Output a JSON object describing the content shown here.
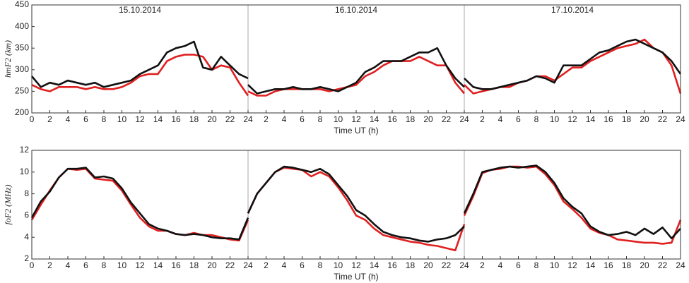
{
  "chart_data": [
    {
      "type": "line",
      "y_label": "hmF2 (km)",
      "x_label": "Time UT (h)",
      "annotations": [
        "15.10.2014",
        "16.10.2014",
        "17.10.2014"
      ],
      "x": [
        0,
        1,
        2,
        3,
        4,
        5,
        6,
        7,
        8,
        9,
        10,
        11,
        12,
        13,
        14,
        15,
        16,
        17,
        18,
        19,
        20,
        21,
        22,
        23,
        24,
        24,
        24,
        25,
        26,
        27,
        28,
        29,
        30,
        31,
        32,
        33,
        34,
        35,
        36,
        37,
        38,
        39,
        40,
        41,
        42,
        43,
        44,
        45,
        46,
        47,
        48,
        48,
        48,
        49,
        50,
        51,
        52,
        53,
        54,
        55,
        56,
        57,
        58,
        59,
        60,
        61,
        62,
        63,
        64,
        65,
        66,
        67,
        68,
        69,
        70,
        71,
        72
      ],
      "series": [
        {
          "color": "#e02020",
          "values": [
            265,
            255,
            250,
            260,
            260,
            260,
            255,
            260,
            255,
            255,
            260,
            270,
            285,
            290,
            290,
            320,
            330,
            335,
            335,
            330,
            300,
            310,
            305,
            270,
            240,
            null,
            250,
            240,
            240,
            250,
            255,
            255,
            255,
            255,
            255,
            250,
            255,
            260,
            265,
            285,
            295,
            310,
            320,
            320,
            320,
            330,
            320,
            310,
            310,
            270,
            245,
            null,
            265,
            245,
            250,
            255,
            260,
            260,
            270,
            275,
            285,
            285,
            275,
            290,
            305,
            305,
            320,
            330,
            340,
            350,
            355,
            360,
            370,
            350,
            340,
            310,
            245
          ]
        },
        {
          "color": "#111111",
          "values": [
            285,
            260,
            270,
            265,
            275,
            270,
            265,
            270,
            260,
            265,
            270,
            275,
            290,
            300,
            310,
            340,
            350,
            355,
            365,
            305,
            300,
            330,
            310,
            290,
            280,
            null,
            265,
            245,
            250,
            255,
            255,
            260,
            255,
            255,
            260,
            255,
            250,
            260,
            270,
            295,
            305,
            320,
            320,
            320,
            330,
            340,
            340,
            350,
            310,
            280,
            260,
            null,
            280,
            260,
            255,
            255,
            260,
            265,
            270,
            275,
            285,
            280,
            270,
            310,
            310,
            310,
            325,
            340,
            345,
            355,
            365,
            370,
            360,
            350,
            340,
            320,
            290
          ]
        }
      ],
      "xlim": [
        0,
        72
      ],
      "ylim": [
        200,
        450
      ],
      "yticks": [
        200,
        250,
        300,
        350,
        400,
        450
      ],
      "xticks": [
        0,
        2,
        4,
        6,
        8,
        10,
        12,
        14,
        16,
        18,
        20,
        22,
        24,
        {
          "value": 26,
          "label": "2"
        },
        {
          "value": 28,
          "label": "4"
        },
        {
          "value": 30,
          "label": "6"
        },
        {
          "value": 32,
          "label": "8"
        },
        {
          "value": 34,
          "label": "10"
        },
        {
          "value": 36,
          "label": "12"
        },
        {
          "value": 38,
          "label": "14"
        },
        {
          "value": 40,
          "label": "16"
        },
        {
          "value": 42,
          "label": "18"
        },
        {
          "value": 44,
          "label": "20"
        },
        {
          "value": 46,
          "label": "22"
        },
        {
          "value": 48,
          "label": "24"
        },
        {
          "value": 50,
          "label": "2"
        },
        {
          "value": 52,
          "label": "4"
        },
        {
          "value": 54,
          "label": "6"
        },
        {
          "value": 56,
          "label": "8"
        },
        {
          "value": 58,
          "label": "10"
        },
        {
          "value": 60,
          "label": "12"
        },
        {
          "value": 62,
          "label": "14"
        },
        {
          "value": 64,
          "label": "16"
        },
        {
          "value": 66,
          "label": "18"
        },
        {
          "value": 68,
          "label": "20"
        },
        {
          "value": 70,
          "label": "22"
        },
        {
          "value": 72,
          "label": "24"
        }
      ]
    },
    {
      "type": "line",
      "y_label": "foF2 (MHz)",
      "x_label": "Time UT (h)",
      "x": [
        0,
        1,
        2,
        3,
        4,
        5,
        6,
        7,
        8,
        9,
        10,
        11,
        12,
        13,
        14,
        15,
        16,
        17,
        18,
        19,
        20,
        21,
        22,
        23,
        24,
        24,
        24,
        25,
        26,
        27,
        28,
        29,
        30,
        31,
        32,
        33,
        34,
        35,
        36,
        37,
        38,
        39,
        40,
        41,
        42,
        43,
        44,
        45,
        46,
        47,
        48,
        48,
        48,
        49,
        50,
        51,
        52,
        53,
        54,
        55,
        56,
        57,
        58,
        59,
        60,
        61,
        62,
        63,
        64,
        65,
        66,
        67,
        68,
        69,
        70,
        71,
        72
      ],
      "series": [
        {
          "color": "#e02020",
          "values": [
            5.6,
            7.0,
            8.3,
            9.5,
            10.3,
            10.2,
            10.3,
            9.4,
            9.3,
            9.2,
            8.3,
            7.0,
            5.8,
            5.0,
            4.6,
            4.6,
            4.3,
            4.2,
            4.4,
            4.2,
            4.2,
            4.0,
            3.8,
            3.7,
            5.6,
            null,
            6.2,
            8.0,
            9.0,
            10.0,
            10.4,
            10.3,
            10.2,
            9.6,
            10.0,
            9.6,
            8.6,
            7.4,
            6.0,
            5.6,
            4.8,
            4.2,
            4.0,
            3.8,
            3.6,
            3.5,
            3.3,
            3.2,
            3.0,
            2.8,
            5.2,
            null,
            6.0,
            7.8,
            9.9,
            10.2,
            10.3,
            10.5,
            10.5,
            10.4,
            10.5,
            9.8,
            8.8,
            7.3,
            6.6,
            5.8,
            4.8,
            4.4,
            4.2,
            3.8,
            3.7,
            3.6,
            3.5,
            3.5,
            3.4,
            3.5,
            5.6
          ]
        },
        {
          "color": "#111111",
          "values": [
            5.8,
            7.3,
            8.2,
            9.5,
            10.3,
            10.3,
            10.4,
            9.5,
            9.6,
            9.4,
            8.5,
            7.2,
            6.2,
            5.2,
            4.8,
            4.6,
            4.3,
            4.2,
            4.3,
            4.2,
            4.0,
            3.9,
            3.9,
            3.8,
            5.8,
            null,
            6.2,
            8.0,
            9.0,
            10.0,
            10.5,
            10.4,
            10.2,
            10.0,
            10.3,
            9.8,
            8.8,
            7.8,
            6.5,
            6.0,
            5.2,
            4.5,
            4.2,
            4.0,
            3.9,
            3.7,
            3.6,
            3.8,
            3.9,
            4.2,
            5.0,
            null,
            6.2,
            8.0,
            10.0,
            10.2,
            10.4,
            10.5,
            10.4,
            10.5,
            10.6,
            10.0,
            9.0,
            7.6,
            6.8,
            6.2,
            5.0,
            4.5,
            4.2,
            4.3,
            4.5,
            4.2,
            4.8,
            4.3,
            4.9,
            3.9,
            4.8
          ]
        }
      ],
      "xlim": [
        0,
        72
      ],
      "ylim": [
        2,
        12
      ],
      "yticks": [
        2,
        4,
        6,
        8,
        10,
        12
      ],
      "xticks": [
        0,
        2,
        4,
        6,
        8,
        10,
        12,
        14,
        16,
        18,
        20,
        22,
        24,
        {
          "value": 26,
          "label": "2"
        },
        {
          "value": 28,
          "label": "4"
        },
        {
          "value": 30,
          "label": "6"
        },
        {
          "value": 32,
          "label": "8"
        },
        {
          "value": 34,
          "label": "10"
        },
        {
          "value": 36,
          "label": "12"
        },
        {
          "value": 38,
          "label": "14"
        },
        {
          "value": 40,
          "label": "16"
        },
        {
          "value": 42,
          "label": "18"
        },
        {
          "value": 44,
          "label": "20"
        },
        {
          "value": 46,
          "label": "22"
        },
        {
          "value": 48,
          "label": "24"
        },
        {
          "value": 50,
          "label": "2"
        },
        {
          "value": 52,
          "label": "4"
        },
        {
          "value": 54,
          "label": "6"
        },
        {
          "value": 56,
          "label": "8"
        },
        {
          "value": 58,
          "label": "10"
        },
        {
          "value": 60,
          "label": "12"
        },
        {
          "value": 62,
          "label": "14"
        },
        {
          "value": 64,
          "label": "16"
        },
        {
          "value": 66,
          "label": "18"
        },
        {
          "value": 68,
          "label": "20"
        },
        {
          "value": 70,
          "label": "22"
        },
        {
          "value": 72,
          "label": "24"
        }
      ]
    }
  ]
}
